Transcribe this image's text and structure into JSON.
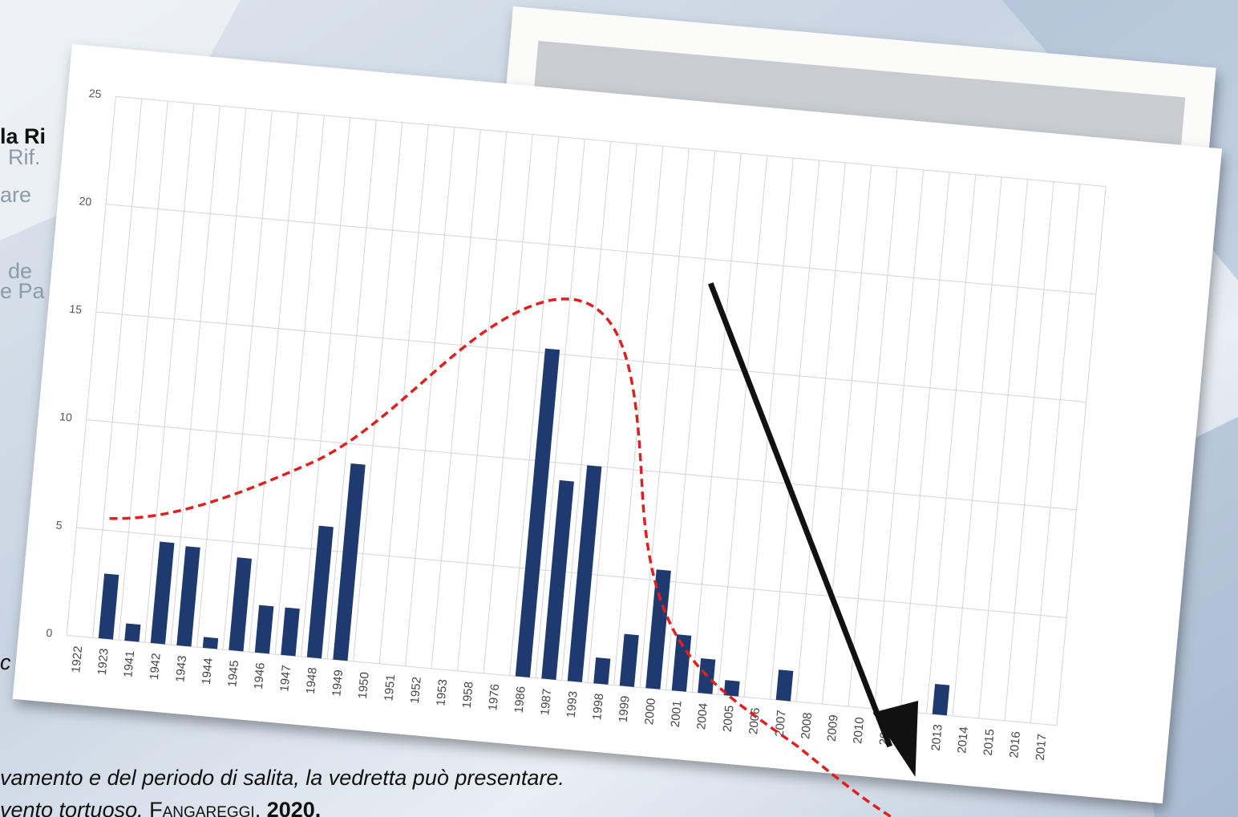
{
  "slide": {
    "fragments": [
      "la Ri",
      "Rif.",
      "are",
      "de",
      "e Pa",
      "c"
    ],
    "footer_line1": "vamento e del periodo di salita, la vedretta può presentare.",
    "footer_end": ".]",
    "footer_line2": "vento tortuoso.",
    "footer_author": "Fangareggi,",
    "footer_year": "2020."
  },
  "chart_data": {
    "type": "bar",
    "categories": [
      "1922",
      "1923",
      "1941",
      "1942",
      "1943",
      "1944",
      "1945",
      "1946",
      "1947",
      "1948",
      "1949",
      "1950",
      "1951",
      "1952",
      "1953",
      "1958",
      "1976",
      "1986",
      "1987",
      "1993",
      "1998",
      "1999",
      "2000",
      "2001",
      "2004",
      "2005",
      "2006",
      "2007",
      "2008",
      "2009",
      "2010",
      "2011",
      "2012",
      "2013",
      "2014",
      "2015",
      "2016",
      "2017"
    ],
    "values": [
      0,
      3,
      0.8,
      4.7,
      4.6,
      0.5,
      4.3,
      2.2,
      2.2,
      6.1,
      9.1,
      0,
      0,
      0,
      0,
      0,
      0,
      15.2,
      9.2,
      10,
      1.2,
      2.4,
      5.5,
      2.6,
      1.6,
      0.7,
      0,
      1.4,
      0,
      0,
      0,
      0,
      0,
      1.4,
      0,
      0,
      0,
      0
    ],
    "color": "#1f3a6e",
    "ylim": [
      0,
      25
    ],
    "yticks": [
      0,
      5,
      10,
      15,
      20,
      25
    ],
    "grid": true
  }
}
